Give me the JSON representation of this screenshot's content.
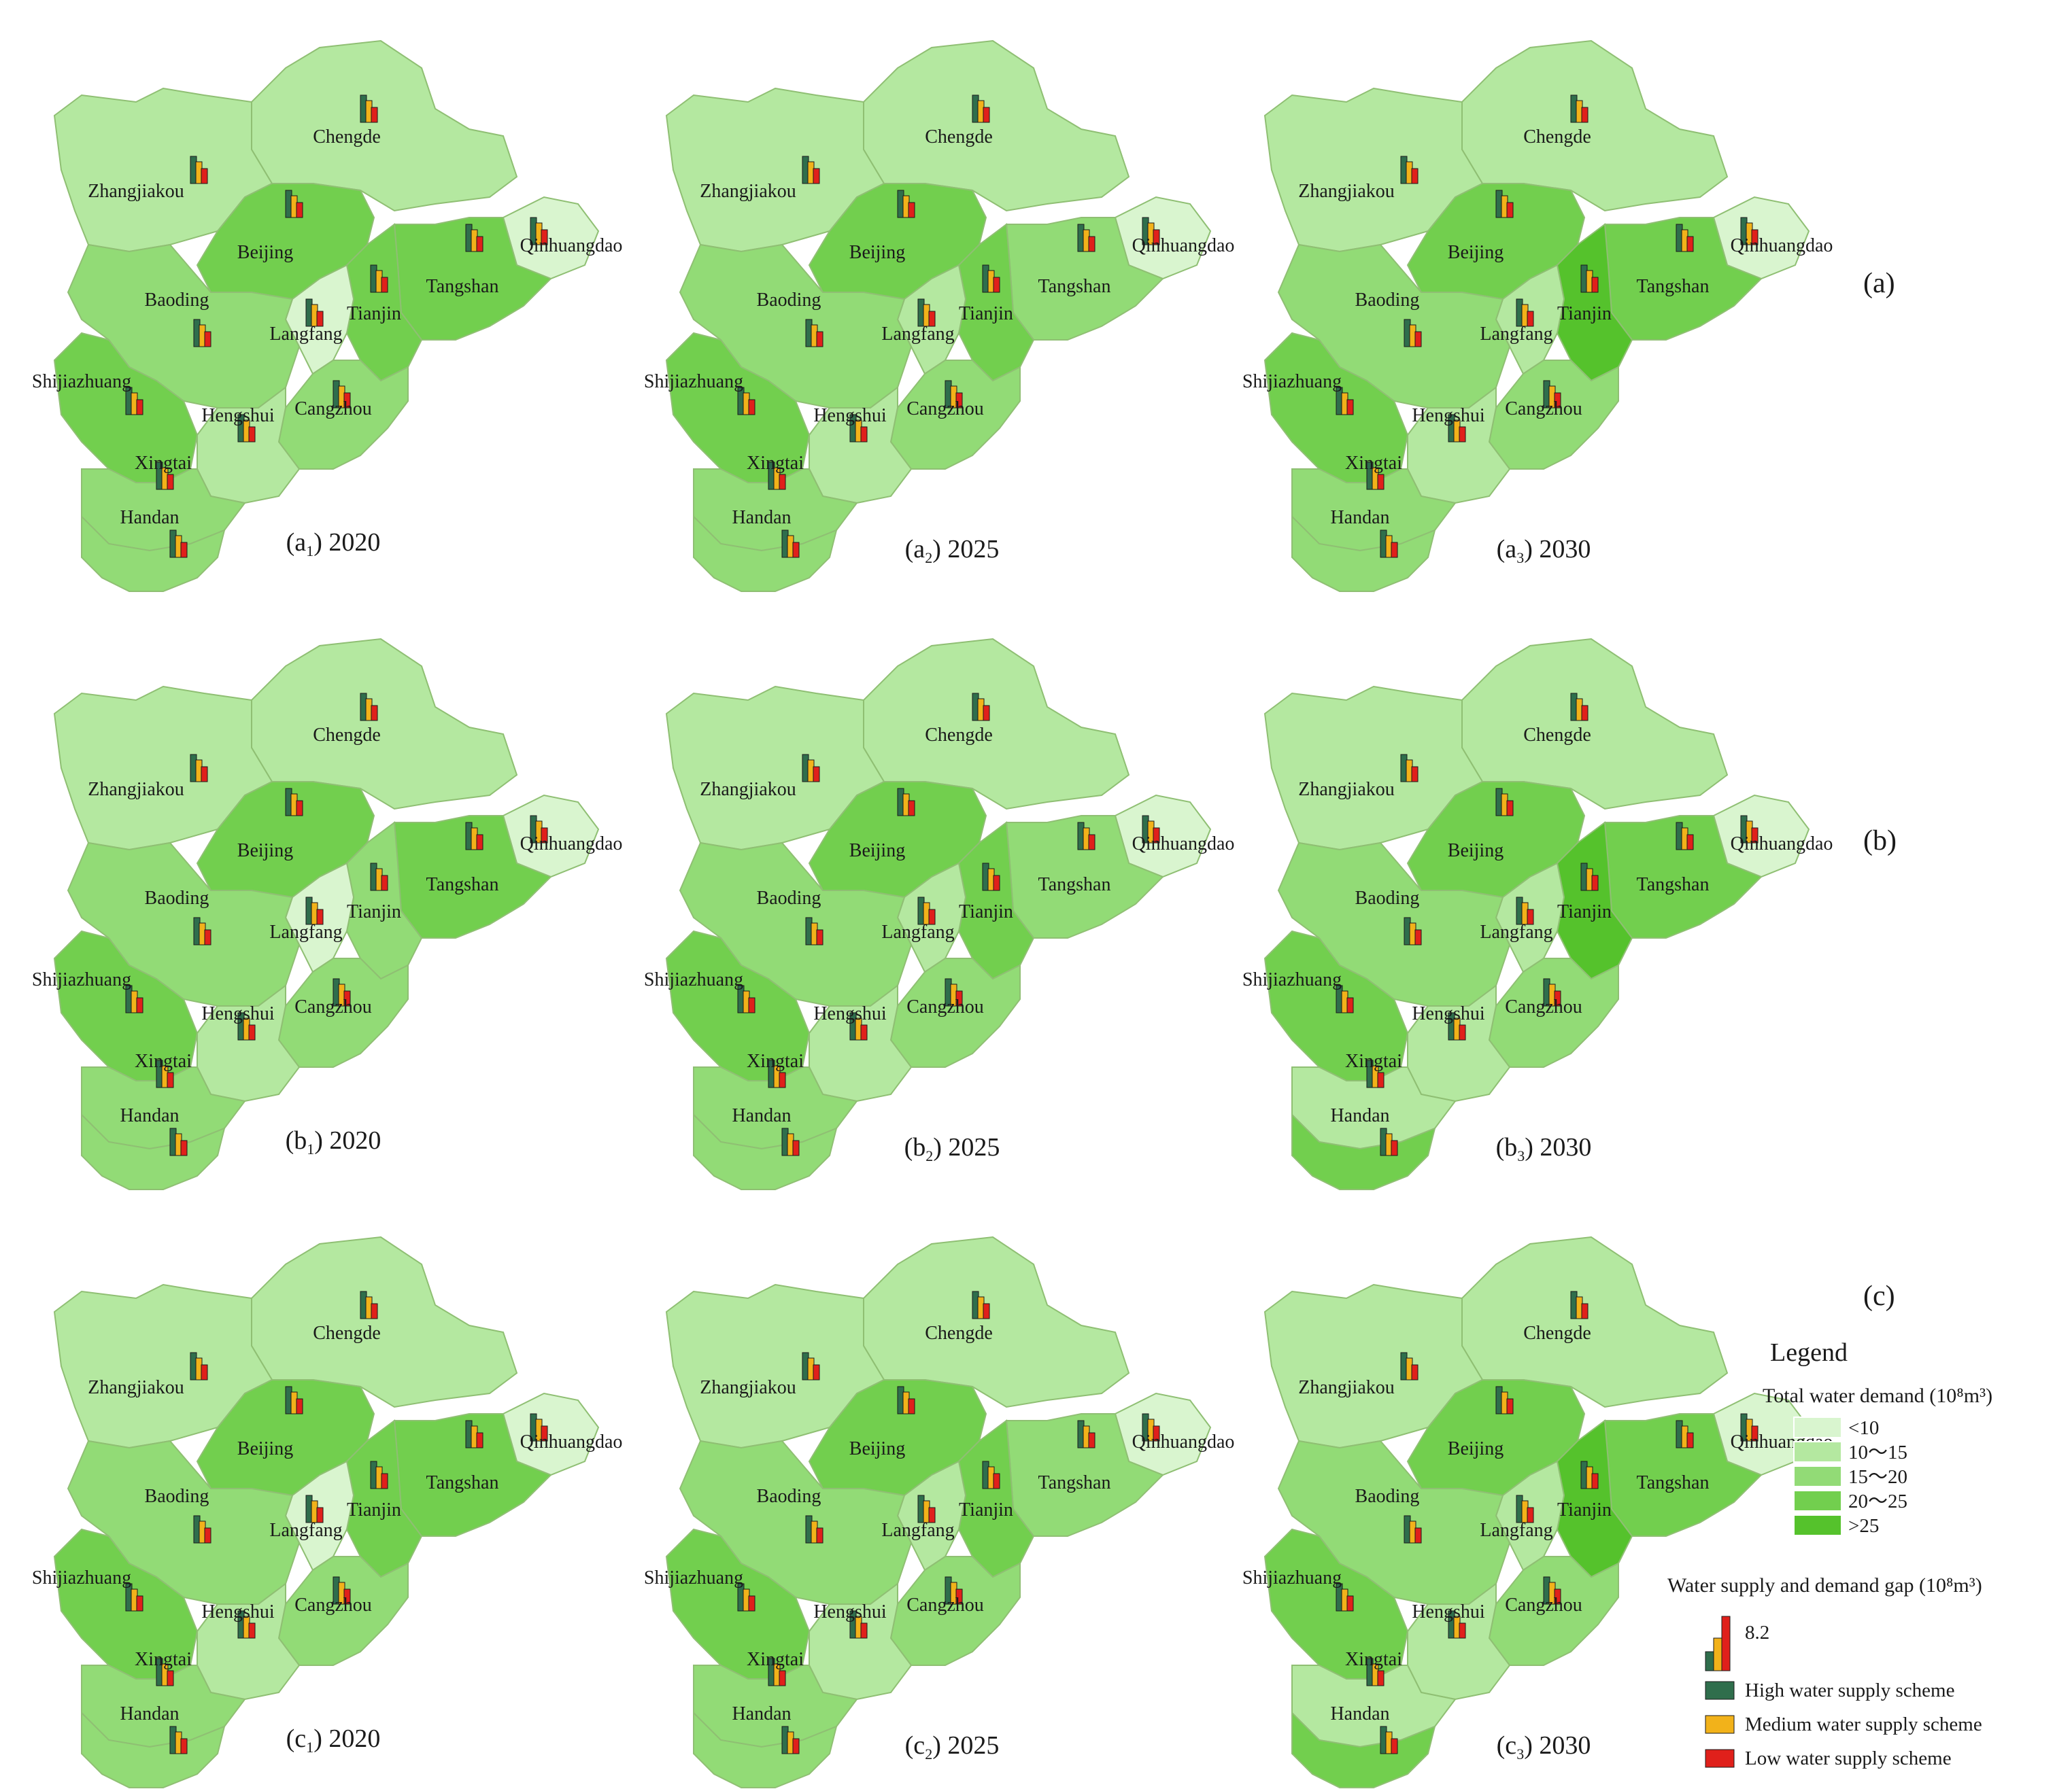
{
  "rows": [
    {
      "label": "(a)",
      "panels": [
        {
          "sub": "a",
          "idx": "1",
          "year": "2020",
          "colors": {
            "Zhangjiakou": 1,
            "Chengde": 1,
            "Beijing": 3,
            "Qinhuangdao": 0,
            "Tangshan": 3,
            "Tianjin": 3,
            "Langfang": 0,
            "Baoding": 2,
            "Shijiazhuang": 3,
            "Cangzhou": 2,
            "Hengshui": 1,
            "Xingtai": 2,
            "Handan": 2
          }
        },
        {
          "sub": "a",
          "idx": "2",
          "year": "2025",
          "colors": {
            "Zhangjiakou": 1,
            "Chengde": 1,
            "Beijing": 3,
            "Qinhuangdao": 0,
            "Tangshan": 2,
            "Tianjin": 3,
            "Langfang": 1,
            "Baoding": 2,
            "Shijiazhuang": 3,
            "Cangzhou": 2,
            "Hengshui": 1,
            "Xingtai": 2,
            "Handan": 2
          }
        },
        {
          "sub": "a",
          "idx": "3",
          "year": "2030",
          "colors": {
            "Zhangjiakou": 1,
            "Chengde": 1,
            "Beijing": 3,
            "Qinhuangdao": 0,
            "Tangshan": 3,
            "Tianjin": 4,
            "Langfang": 1,
            "Baoding": 2,
            "Shijiazhuang": 3,
            "Cangzhou": 2,
            "Hengshui": 1,
            "Xingtai": 2,
            "Handan": 2
          }
        }
      ]
    },
    {
      "label": "(b)",
      "panels": [
        {
          "sub": "b",
          "idx": "1",
          "year": "2020",
          "colors": {
            "Zhangjiakou": 1,
            "Chengde": 1,
            "Beijing": 3,
            "Qinhuangdao": 0,
            "Tangshan": 3,
            "Tianjin": 2,
            "Langfang": 0,
            "Baoding": 2,
            "Shijiazhuang": 3,
            "Cangzhou": 2,
            "Hengshui": 1,
            "Xingtai": 2,
            "Handan": 2
          }
        },
        {
          "sub": "b",
          "idx": "2",
          "year": "2025",
          "colors": {
            "Zhangjiakou": 1,
            "Chengde": 1,
            "Beijing": 3,
            "Qinhuangdao": 0,
            "Tangshan": 2,
            "Tianjin": 3,
            "Langfang": 1,
            "Baoding": 2,
            "Shijiazhuang": 3,
            "Cangzhou": 2,
            "Hengshui": 1,
            "Xingtai": 2,
            "Handan": 2
          }
        },
        {
          "sub": "b",
          "idx": "3",
          "year": "2030",
          "colors": {
            "Zhangjiakou": 1,
            "Chengde": 1,
            "Beijing": 3,
            "Qinhuangdao": 0,
            "Tangshan": 3,
            "Tianjin": 4,
            "Langfang": 1,
            "Baoding": 2,
            "Shijiazhuang": 3,
            "Cangzhou": 2,
            "Hengshui": 1,
            "Xingtai": 1,
            "Handan": 3
          }
        }
      ]
    },
    {
      "label": "(c)",
      "panels": [
        {
          "sub": "c",
          "idx": "1",
          "year": "2020",
          "colors": {
            "Zhangjiakou": 1,
            "Chengde": 1,
            "Beijing": 3,
            "Qinhuangdao": 0,
            "Tangshan": 3,
            "Tianjin": 3,
            "Langfang": 0,
            "Baoding": 2,
            "Shijiazhuang": 3,
            "Cangzhou": 2,
            "Hengshui": 1,
            "Xingtai": 2,
            "Handan": 2
          }
        },
        {
          "sub": "c",
          "idx": "2",
          "year": "2025",
          "colors": {
            "Zhangjiakou": 1,
            "Chengde": 1,
            "Beijing": 3,
            "Qinhuangdao": 0,
            "Tangshan": 2,
            "Tianjin": 3,
            "Langfang": 1,
            "Baoding": 2,
            "Shijiazhuang": 3,
            "Cangzhou": 2,
            "Hengshui": 1,
            "Xingtai": 2,
            "Handan": 2
          }
        },
        {
          "sub": "c",
          "idx": "3",
          "year": "2030",
          "colors": {
            "Zhangjiakou": 1,
            "Chengde": 1,
            "Beijing": 3,
            "Qinhuangdao": 0,
            "Tangshan": 3,
            "Tianjin": 4,
            "Langfang": 1,
            "Baoding": 2,
            "Shijiazhuang": 3,
            "Cangzhou": 2,
            "Hengshui": 1,
            "Xingtai": 1,
            "Handan": 3
          }
        }
      ]
    }
  ],
  "cities": [
    "Chengde",
    "Zhangjiakou",
    "Beijing",
    "Qinhuangdao",
    "Tangshan",
    "Tianjin",
    "Langfang",
    "Baoding",
    "Shijiazhuang",
    "Cangzhou",
    "Hengshui",
    "Xingtai",
    "Handan"
  ],
  "legend": {
    "title": "Legend",
    "demand_title": "Total water demand (10⁸m³)",
    "classes": [
      {
        "label": "<10",
        "color": "#d9f5cf"
      },
      {
        "label": "10～15",
        "color": "#b4e8a0"
      },
      {
        "label": "15～20",
        "color": "#92db76"
      },
      {
        "label": "20～25",
        "color": "#72cf4e"
      },
      {
        "label": ">25",
        "color": "#55c22c"
      }
    ],
    "gap_title": "Water supply and demand gap (10⁸m³)",
    "gap_value": "8.2",
    "schemes": [
      {
        "label": "High water supply scheme",
        "color": "#2f6e4c"
      },
      {
        "label": "Medium water supply scheme",
        "color": "#f2b21a"
      },
      {
        "label": "Low water supply scheme",
        "color": "#e0201b"
      }
    ]
  },
  "background_color": "#ffffff",
  "map_border_color": "#8fbf73"
}
